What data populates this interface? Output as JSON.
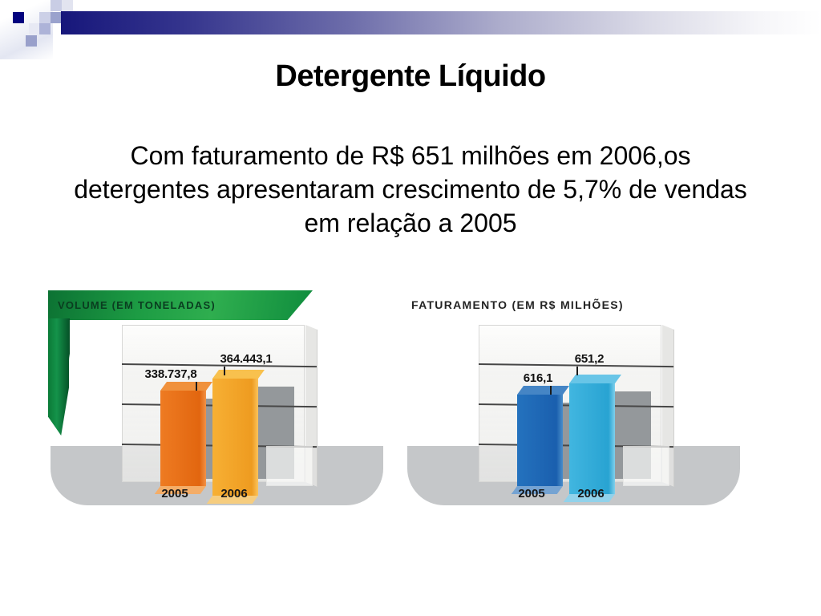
{
  "slide": {
    "title": "Detergente Líquido",
    "body_lines": [
      "Com faturamento de R$ 651 milhões em 2006,os",
      "detergentes apresentaram crescimento de 5,7% de vendas",
      "em relação a 2005"
    ]
  },
  "chart_data": [
    {
      "type": "bar",
      "title": "VOLUME (EM TONELADAS)",
      "categories": [
        "2005",
        "2006"
      ],
      "values": [
        338737.8,
        364443.1
      ],
      "value_labels": [
        "338.737,8",
        "364.443,1"
      ],
      "bar_colors": [
        "#e8701c",
        "#f5a92f"
      ],
      "header_style": "green-banner",
      "grid": true,
      "legend_position": "none"
    },
    {
      "type": "bar",
      "title": "FATURAMENTO (EM R$ MILHÕES)",
      "categories": [
        "2005",
        "2006"
      ],
      "values": [
        616.1,
        651.2
      ],
      "value_labels": [
        "616,1",
        "651,2"
      ],
      "bar_colors": [
        "#1e6cb6",
        "#39b1dd"
      ],
      "header_style": "plain",
      "grid": true,
      "legend_position": "none"
    }
  ],
  "decor": {
    "header_bar_navy": "#17177b",
    "square_navy": "#03037f",
    "square_lavender": "#9aa2cd",
    "banner_green": "#1d9c44",
    "floor_gray": "#c5c7c9",
    "shadow_gray": "#94989b",
    "gridline_gray": "#474747"
  }
}
